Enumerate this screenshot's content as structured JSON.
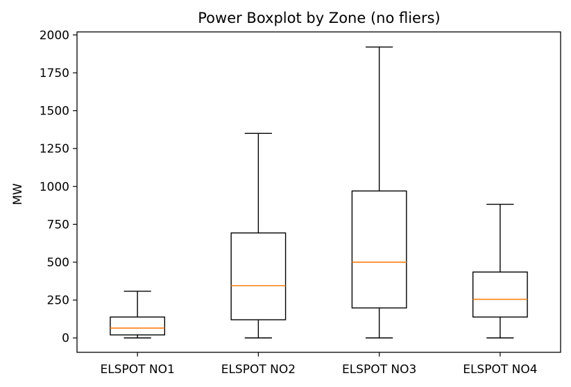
{
  "chart_data": {
    "type": "box",
    "title": "Power Boxplot by Zone (no fliers)",
    "xlabel": "",
    "ylabel": "MW",
    "ylim": [
      -95,
      2020
    ],
    "yticks": [
      0,
      250,
      500,
      750,
      1000,
      1250,
      1500,
      1750,
      2000
    ],
    "categories": [
      "ELSPOT NO1",
      "ELSPOT NO2",
      "ELSPOT NO3",
      "ELSPOT NO4"
    ],
    "boxes": [
      {
        "whisker_low": 0,
        "q1": 20,
        "median": 65,
        "q3": 138,
        "whisker_high": 308
      },
      {
        "whisker_low": 0,
        "q1": 120,
        "median": 345,
        "q3": 693,
        "whisker_high": 1350
      },
      {
        "whisker_low": 0,
        "q1": 198,
        "median": 500,
        "q3": 970,
        "whisker_high": 1920
      },
      {
        "whisker_low": 0,
        "q1": 138,
        "median": 255,
        "q3": 435,
        "whisker_high": 882
      }
    ],
    "grid": false,
    "legend": "none",
    "colors": {
      "box": "#000000",
      "median": "#ff7f0e"
    }
  }
}
